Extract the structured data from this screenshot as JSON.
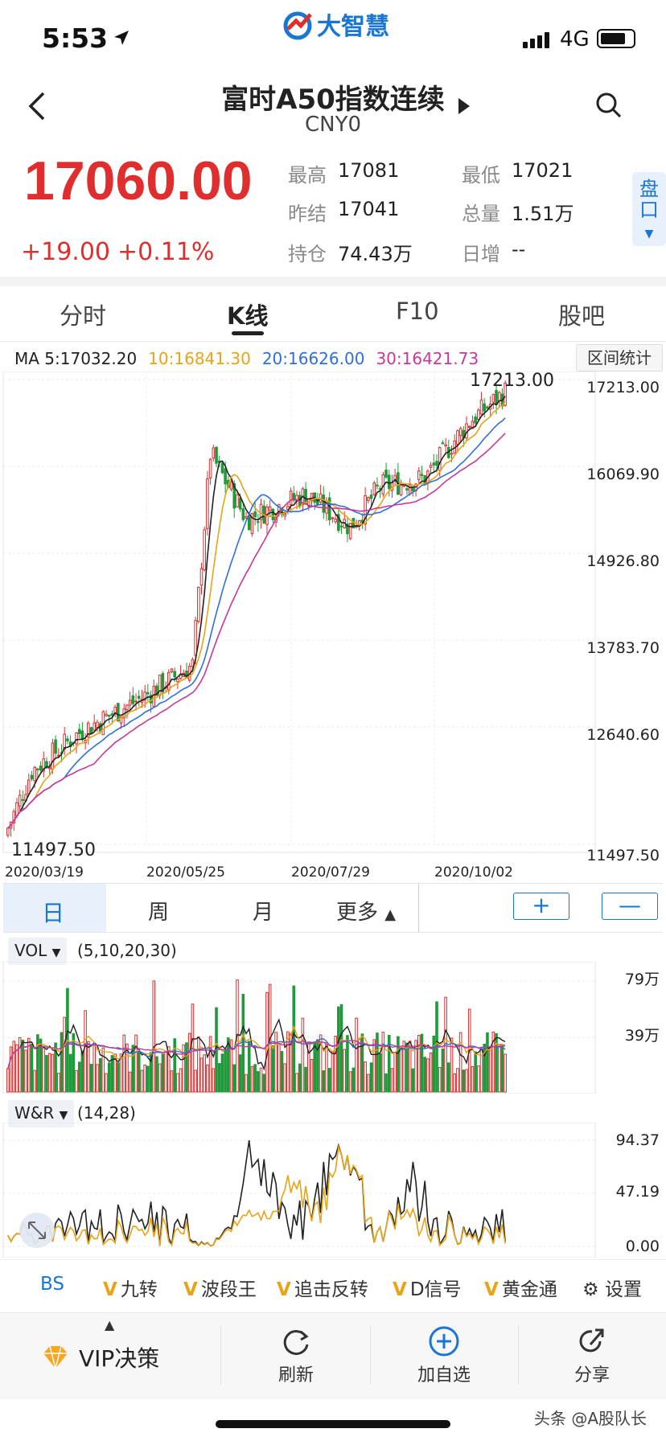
{
  "status": {
    "time": "5:53",
    "network": "4G",
    "app_logo": "大智慧"
  },
  "header": {
    "title": "富时A50指数连续",
    "subtitle": "CNY0"
  },
  "quote": {
    "price": "17060.00",
    "change": "+19.00",
    "change_pct": "+0.11%",
    "stats": [
      {
        "label": "最高",
        "value": "17081"
      },
      {
        "label": "最低",
        "value": "17021"
      },
      {
        "label": "昨结",
        "value": "17041"
      },
      {
        "label": "总量",
        "value": "1.51万"
      },
      {
        "label": "持仓",
        "value": "74.43万"
      },
      {
        "label": "日增",
        "value": "--"
      }
    ],
    "side_button": "盘口"
  },
  "tabs": [
    "分时",
    "K线",
    "F10",
    "股吧"
  ],
  "ma": {
    "ma5": "MA 5:17032.20",
    "ma10": "10:16841.30",
    "ma20": "20:16626.00",
    "ma30": "30:16421.73",
    "range_button": "区间统计"
  },
  "colors": {
    "up": "#e02d2d",
    "down": "#1e9a3a",
    "ma5": "#222222",
    "ma10": "#e8a317",
    "ma20": "#2f6fd6",
    "ma30": "#c8389a",
    "accent": "#1976d2"
  },
  "kline": {
    "high_label": "17213.00",
    "low_label": "11497.50",
    "y_ticks": [
      "17213.00",
      "16069.90",
      "14926.80",
      "13783.70",
      "12640.60",
      "11497.50"
    ],
    "dates": [
      "2020/03/19",
      "2020/05/25",
      "2020/07/29",
      "2020/10/02"
    ]
  },
  "period": {
    "day": "日",
    "week": "周",
    "month": "月",
    "more": "更多",
    "zoom_in": "+",
    "zoom_out": "—"
  },
  "vol": {
    "name": "VOL",
    "params": "(5,10,20,30)",
    "ticks": [
      "79万",
      "39万"
    ]
  },
  "wr": {
    "name": "W&R",
    "params": "(14,28)",
    "ticks": [
      "94.37",
      "47.19",
      "0.00"
    ]
  },
  "signals": [
    {
      "text": "BS",
      "vip": false
    },
    {
      "text": "九转",
      "vip": true
    },
    {
      "text": "波段王",
      "vip": true
    },
    {
      "text": "追击反转",
      "vip": true
    },
    {
      "text": "D信号",
      "vip": true
    },
    {
      "text": "黄金通",
      "vip": true
    }
  ],
  "settings_label": "设置",
  "nav": {
    "vip": "VIP决策",
    "refresh": "刷新",
    "add": "加自选",
    "share": "分享"
  },
  "watermark": "头条 @A股队长"
}
